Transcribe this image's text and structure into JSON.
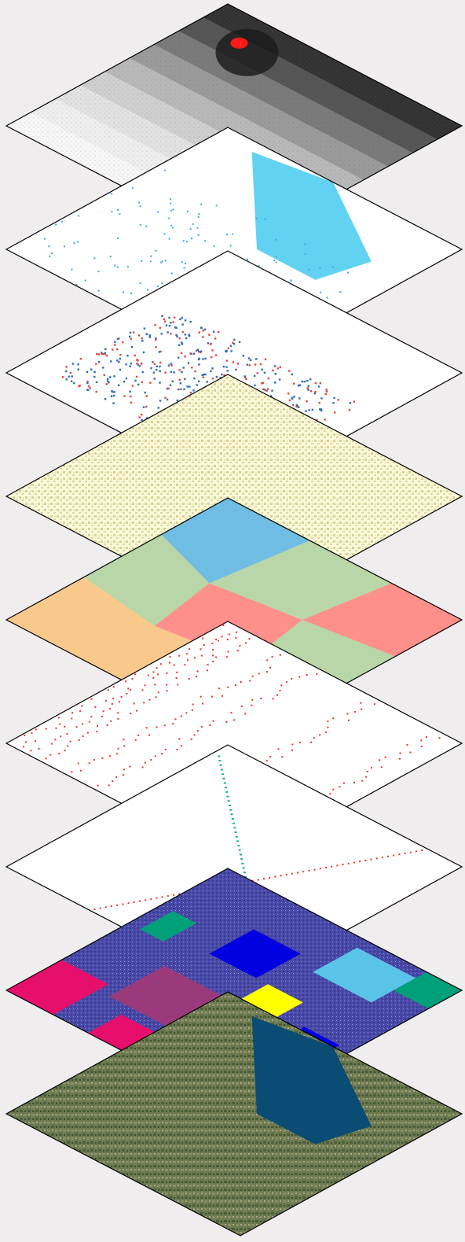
{
  "diagram": {
    "layers": [
      {
        "id": "elevation",
        "base": "#f4f4f4",
        "pattern": "elevation",
        "accent": "#222222",
        "marker": "#ff1a1a"
      },
      {
        "id": "waterbodies",
        "base": "#ffffff",
        "pattern": "waterbody",
        "accent": "#62d2f2",
        "dots": "#3aa7e0"
      },
      {
        "id": "settlements",
        "base": "#ffffff",
        "pattern": "scatter",
        "dots_a": "#2c69b8",
        "dots_b": "#e0473c"
      },
      {
        "id": "vegetation",
        "base": "#fbf9d8",
        "pattern": "vegetation",
        "accent": "#d8d49c"
      },
      {
        "id": "zones",
        "base": "#cfe3c2",
        "pattern": "zones",
        "colors": [
          "#f9c98c",
          "#6fbde3",
          "#ff8f8a",
          "#b8d6a8"
        ]
      },
      {
        "id": "roads",
        "base": "#ffffff",
        "pattern": "lines",
        "dots": "#e8322a"
      },
      {
        "id": "railways",
        "base": "#ffffff",
        "pattern": "rails",
        "dots_a": "#e8322a",
        "dots_b": "#1bae8c"
      },
      {
        "id": "landuse",
        "base": "#4040b0",
        "pattern": "landuse",
        "colors": [
          "#e60f6b",
          "#ffff00",
          "#0000e0",
          "#5ac3e8",
          "#00a07a",
          "#9b3a7a"
        ]
      },
      {
        "id": "satellite",
        "base": "#6c7a52",
        "pattern": "satellite",
        "accent": "#0b4c74"
      }
    ]
  }
}
